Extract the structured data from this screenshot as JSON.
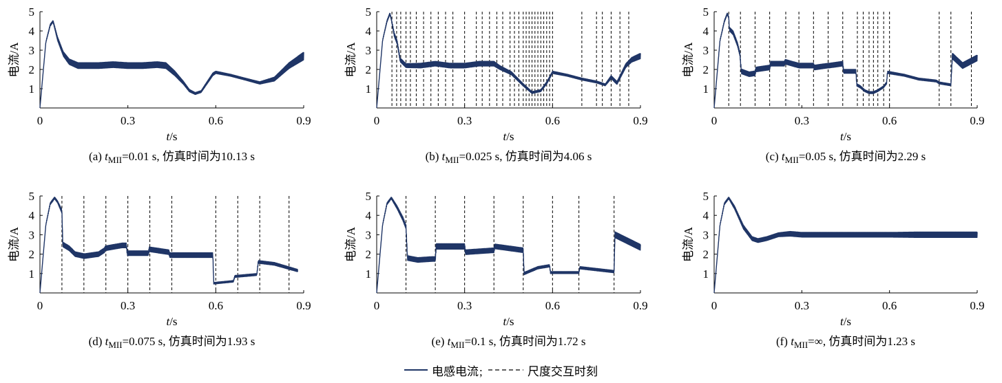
{
  "figure": {
    "legend": {
      "series_label": "电感电流",
      "separator": ";",
      "marker_label": "尺度交互时刻",
      "series_color": "#1f3566"
    }
  },
  "chart_data": [
    {
      "type": "line",
      "panel": "a",
      "caption": {
        "prefix": "(a) ",
        "tsym": "t",
        "sub": "MII",
        "rest": "=0.01 s, 仿真时间为10.13 s"
      },
      "xlabel": {
        "sym": "t",
        "unit": "/s"
      },
      "ylabel": "电流/A",
      "xlim": [
        0,
        0.9
      ],
      "ylim": [
        0,
        5
      ],
      "xticks": [
        0,
        0.3,
        0.6,
        0.9
      ],
      "xtick_labels": [
        "0",
        "0.3",
        "0.6",
        "0.9"
      ],
      "yticks": [
        1,
        2,
        3,
        4,
        5
      ],
      "ytick_labels": [
        "1",
        "2",
        "3",
        "4",
        "5"
      ],
      "series": [
        {
          "color": "#1f3566",
          "x": [
            0,
            0.02,
            0.035,
            0.045,
            0.06,
            0.08,
            0.1,
            0.13,
            0.16,
            0.2,
            0.25,
            0.3,
            0.35,
            0.4,
            0.43,
            0.46,
            0.49,
            0.51,
            0.53,
            0.55,
            0.57,
            0.59,
            0.6,
            0.65,
            0.7,
            0.75,
            0.8,
            0.85,
            0.9
          ],
          "y": [
            0,
            3.4,
            4.3,
            4.5,
            3.6,
            2.8,
            2.4,
            2.2,
            2.2,
            2.2,
            2.25,
            2.2,
            2.2,
            2.25,
            2.2,
            1.8,
            1.3,
            0.9,
            0.75,
            0.85,
            1.3,
            1.75,
            1.85,
            1.7,
            1.5,
            1.3,
            1.5,
            2.2,
            2.7
          ],
          "ripple": [
            0,
            0.03,
            0.05,
            0.05,
            0.1,
            0.12,
            0.14,
            0.15,
            0.15,
            0.15,
            0.15,
            0.15,
            0.15,
            0.15,
            0.15,
            0.12,
            0.08,
            0.06,
            0.05,
            0.05,
            0.06,
            0.07,
            0.06,
            0.05,
            0.05,
            0.06,
            0.1,
            0.15,
            0.2
          ]
        }
      ],
      "interaction_times": []
    },
    {
      "type": "line",
      "panel": "b",
      "caption": {
        "prefix": "(b) ",
        "tsym": "t",
        "sub": "MII",
        "rest": "=0.025 s, 仿真时间为4.06 s"
      },
      "xlabel": {
        "sym": "t",
        "unit": "/s"
      },
      "ylabel": "电流/A",
      "xlim": [
        0,
        0.9
      ],
      "ylim": [
        0,
        5
      ],
      "xticks": [
        0,
        0.3,
        0.6,
        0.9
      ],
      "xtick_labels": [
        "0",
        "0.3",
        "0.6",
        "0.9"
      ],
      "yticks": [
        1,
        2,
        3,
        4,
        5
      ],
      "ytick_labels": [
        "1",
        "2",
        "3",
        "4",
        "5"
      ],
      "series": [
        {
          "color": "#1f3566",
          "x": [
            0,
            0.02,
            0.035,
            0.045,
            0.05,
            0.06,
            0.07,
            0.08,
            0.1,
            0.15,
            0.2,
            0.25,
            0.3,
            0.35,
            0.4,
            0.42,
            0.46,
            0.5,
            0.53,
            0.56,
            0.58,
            0.6,
            0.65,
            0.7,
            0.75,
            0.78,
            0.8,
            0.82,
            0.85,
            0.87,
            0.9
          ],
          "y": [
            0,
            3.5,
            4.5,
            4.9,
            4.6,
            3.8,
            3.4,
            2.5,
            2.2,
            2.2,
            2.3,
            2.2,
            2.2,
            2.3,
            2.3,
            2.1,
            1.8,
            1.2,
            0.8,
            0.9,
            1.3,
            1.85,
            1.7,
            1.5,
            1.35,
            1.2,
            1.6,
            1.3,
            2.2,
            2.5,
            2.7
          ],
          "ripple": [
            0,
            0.03,
            0.05,
            0.05,
            0.05,
            0.1,
            0.1,
            0.1,
            0.1,
            0.12,
            0.12,
            0.12,
            0.12,
            0.12,
            0.12,
            0.1,
            0.08,
            0.06,
            0.05,
            0.05,
            0.06,
            0.06,
            0.05,
            0.05,
            0.05,
            0.05,
            0.08,
            0.08,
            0.1,
            0.12,
            0.14
          ]
        }
      ],
      "interaction_times": [
        0.052,
        0.068,
        0.082,
        0.1,
        0.115,
        0.135,
        0.16,
        0.185,
        0.21,
        0.235,
        0.26,
        0.3,
        0.34,
        0.36,
        0.385,
        0.41,
        0.43,
        0.455,
        0.47,
        0.485,
        0.5,
        0.51,
        0.52,
        0.53,
        0.54,
        0.55,
        0.56,
        0.57,
        0.58,
        0.59,
        0.6,
        0.7,
        0.75,
        0.77,
        0.8,
        0.83,
        0.86
      ]
    },
    {
      "type": "line",
      "panel": "c",
      "caption": {
        "prefix": "(c) ",
        "tsym": "t",
        "sub": "MII",
        "rest": "=0.05 s, 仿真时间为2.29 s"
      },
      "xlabel": {
        "sym": "t",
        "unit": "/s"
      },
      "ylabel": "电流/A",
      "xlim": [
        0,
        0.9
      ],
      "ylim": [
        0,
        5
      ],
      "xticks": [
        0,
        0.3,
        0.6,
        0.9
      ],
      "xtick_labels": [
        "0",
        "0.3",
        "0.6",
        "0.9"
      ],
      "yticks": [
        1,
        2,
        3,
        4,
        5
      ],
      "ytick_labels": [
        "1",
        "2",
        "3",
        "4",
        "5"
      ],
      "series": [
        {
          "color": "#1f3566",
          "x": [
            0,
            0.02,
            0.035,
            0.045,
            0.05,
            0.052,
            0.065,
            0.08,
            0.088,
            0.093,
            0.12,
            0.14,
            0.143,
            0.19,
            0.193,
            0.24,
            0.243,
            0.29,
            0.293,
            0.34,
            0.343,
            0.39,
            0.393,
            0.44,
            0.443,
            0.485,
            0.488,
            0.5,
            0.515,
            0.53,
            0.545,
            0.56,
            0.58,
            0.59,
            0.593,
            0.65,
            0.7,
            0.76,
            0.77,
            0.81,
            0.815,
            0.85,
            0.9
          ],
          "y": [
            0,
            3.5,
            4.5,
            4.9,
            4.7,
            4.1,
            3.9,
            3.3,
            2.8,
            1.9,
            1.75,
            1.8,
            2.0,
            2.1,
            2.3,
            2.3,
            2.4,
            2.2,
            2.2,
            2.2,
            2.1,
            2.2,
            2.2,
            2.3,
            1.9,
            1.9,
            1.2,
            1.1,
            0.9,
            0.8,
            0.8,
            0.9,
            1.1,
            1.3,
            1.85,
            1.7,
            1.5,
            1.4,
            1.3,
            1.2,
            2.7,
            2.2,
            2.6
          ],
          "ripple": [
            0,
            0.03,
            0.05,
            0.05,
            0.05,
            0.1,
            0.1,
            0.1,
            0.1,
            0.12,
            0.12,
            0.12,
            0.12,
            0.12,
            0.12,
            0.12,
            0.12,
            0.12,
            0.12,
            0.12,
            0.12,
            0.12,
            0.12,
            0.12,
            0.1,
            0.1,
            0.06,
            0.06,
            0.05,
            0.05,
            0.05,
            0.05,
            0.05,
            0.05,
            0.06,
            0.05,
            0.05,
            0.05,
            0.05,
            0.05,
            0.15,
            0.15,
            0.15
          ]
        }
      ],
      "interaction_times": [
        0.05,
        0.09,
        0.14,
        0.19,
        0.245,
        0.29,
        0.34,
        0.39,
        0.44,
        0.49,
        0.51,
        0.53,
        0.545,
        0.56,
        0.58,
        0.6,
        0.77,
        0.81,
        0.88
      ]
    },
    {
      "type": "line",
      "panel": "d",
      "caption": {
        "prefix": "(d) ",
        "tsym": "t",
        "sub": "MII",
        "rest": "=0.075 s, 仿真时间为1.93 s"
      },
      "xlabel": {
        "sym": "t",
        "unit": "/s"
      },
      "ylabel": "电流/A",
      "xlim": [
        0,
        0.9
      ],
      "ylim": [
        0,
        5
      ],
      "xticks": [
        0,
        0.3,
        0.6,
        0.9
      ],
      "xtick_labels": [
        "0",
        "0.3",
        "0.6",
        "0.9"
      ],
      "yticks": [
        1,
        2,
        3,
        4,
        5
      ],
      "ytick_labels": [
        "1",
        "2",
        "3",
        "4",
        "5"
      ],
      "series": [
        {
          "color": "#1f3566",
          "x": [
            0,
            0.02,
            0.035,
            0.05,
            0.06,
            0.075,
            0.078,
            0.1,
            0.12,
            0.15,
            0.153,
            0.2,
            0.22,
            0.223,
            0.28,
            0.295,
            0.298,
            0.37,
            0.373,
            0.44,
            0.443,
            0.5,
            0.59,
            0.593,
            0.66,
            0.665,
            0.74,
            0.745,
            0.8,
            0.88
          ],
          "y": [
            0,
            3.5,
            4.6,
            4.9,
            4.7,
            4.2,
            2.5,
            2.3,
            2.0,
            1.9,
            1.9,
            2.0,
            2.2,
            2.3,
            2.45,
            2.45,
            2.05,
            2.05,
            2.25,
            2.1,
            1.95,
            1.95,
            1.95,
            0.5,
            0.6,
            0.85,
            0.95,
            1.6,
            1.5,
            1.15
          ],
          "ripple": [
            0,
            0.03,
            0.05,
            0.05,
            0.05,
            0.1,
            0.12,
            0.12,
            0.12,
            0.12,
            0.12,
            0.12,
            0.12,
            0.12,
            0.12,
            0.12,
            0.12,
            0.12,
            0.12,
            0.12,
            0.12,
            0.12,
            0.12,
            0.04,
            0.04,
            0.05,
            0.05,
            0.07,
            0.07,
            0.06
          ]
        }
      ],
      "interaction_times": [
        0.075,
        0.15,
        0.225,
        0.3,
        0.375,
        0.45,
        0.6,
        0.675,
        0.75,
        0.85
      ]
    },
    {
      "type": "line",
      "panel": "e",
      "caption": {
        "prefix": "(e) ",
        "tsym": "t",
        "sub": "MII",
        "rest": "=0.1 s, 仿真时间为1.72 s"
      },
      "xlabel": {
        "sym": "t",
        "unit": "/s"
      },
      "ylabel": "电流/A",
      "xlim": [
        0,
        0.9
      ],
      "ylim": [
        0,
        5
      ],
      "xticks": [
        0,
        0.3,
        0.6,
        0.9
      ],
      "xtick_labels": [
        "0",
        "0.3",
        "0.6",
        "0.9"
      ],
      "yticks": [
        1,
        2,
        3,
        4,
        5
      ],
      "ytick_labels": [
        "1",
        "2",
        "3",
        "4",
        "5"
      ],
      "series": [
        {
          "color": "#1f3566",
          "x": [
            0,
            0.02,
            0.035,
            0.05,
            0.07,
            0.09,
            0.1,
            0.105,
            0.14,
            0.19,
            0.2,
            0.203,
            0.3,
            0.303,
            0.4,
            0.403,
            0.5,
            0.503,
            0.55,
            0.59,
            0.593,
            0.69,
            0.693,
            0.81,
            0.813,
            0.9
          ],
          "y": [
            0,
            3.5,
            4.6,
            4.9,
            4.4,
            3.8,
            3.4,
            1.8,
            1.7,
            1.75,
            1.75,
            2.4,
            2.4,
            2.1,
            2.2,
            2.4,
            2.2,
            1.0,
            1.3,
            1.4,
            1.05,
            1.05,
            1.3,
            1.1,
            3.0,
            2.35
          ],
          "ripple": [
            0,
            0.03,
            0.05,
            0.05,
            0.08,
            0.1,
            0.1,
            0.12,
            0.12,
            0.12,
            0.12,
            0.14,
            0.14,
            0.12,
            0.12,
            0.12,
            0.12,
            0.06,
            0.06,
            0.06,
            0.05,
            0.05,
            0.06,
            0.06,
            0.15,
            0.15
          ]
        }
      ],
      "interaction_times": [
        0.1,
        0.2,
        0.3,
        0.4,
        0.5,
        0.6,
        0.69,
        0.81
      ]
    },
    {
      "type": "line",
      "panel": "f",
      "caption": {
        "prefix": "(f) ",
        "tsym": "t",
        "sub": "MII",
        "rest": "=∞, 仿真时间为1.23 s"
      },
      "xlabel": {
        "sym": "t",
        "unit": "/s"
      },
      "ylabel": "电流/A",
      "xlim": [
        0,
        0.9
      ],
      "ylim": [
        0,
        5
      ],
      "xticks": [
        0,
        0.3,
        0.6,
        0.9
      ],
      "xtick_labels": [
        "0",
        "0.3",
        "0.6",
        "0.9"
      ],
      "yticks": [
        1,
        2,
        3,
        4,
        5
      ],
      "ytick_labels": [
        "1",
        "2",
        "3",
        "4",
        "5"
      ],
      "series": [
        {
          "color": "#1f3566",
          "x": [
            0,
            0.02,
            0.035,
            0.05,
            0.07,
            0.1,
            0.13,
            0.15,
            0.18,
            0.22,
            0.26,
            0.3,
            0.4,
            0.5,
            0.6,
            0.7,
            0.8,
            0.9
          ],
          "y": [
            0,
            3.5,
            4.6,
            4.9,
            4.4,
            3.4,
            2.8,
            2.7,
            2.8,
            3.0,
            3.05,
            3.0,
            3.0,
            3.0,
            3.0,
            3.0,
            3.0,
            3.0
          ],
          "ripple": [
            0,
            0.03,
            0.05,
            0.05,
            0.08,
            0.1,
            0.1,
            0.1,
            0.1,
            0.1,
            0.12,
            0.12,
            0.12,
            0.12,
            0.12,
            0.14,
            0.14,
            0.14
          ]
        }
      ],
      "interaction_times": []
    }
  ]
}
